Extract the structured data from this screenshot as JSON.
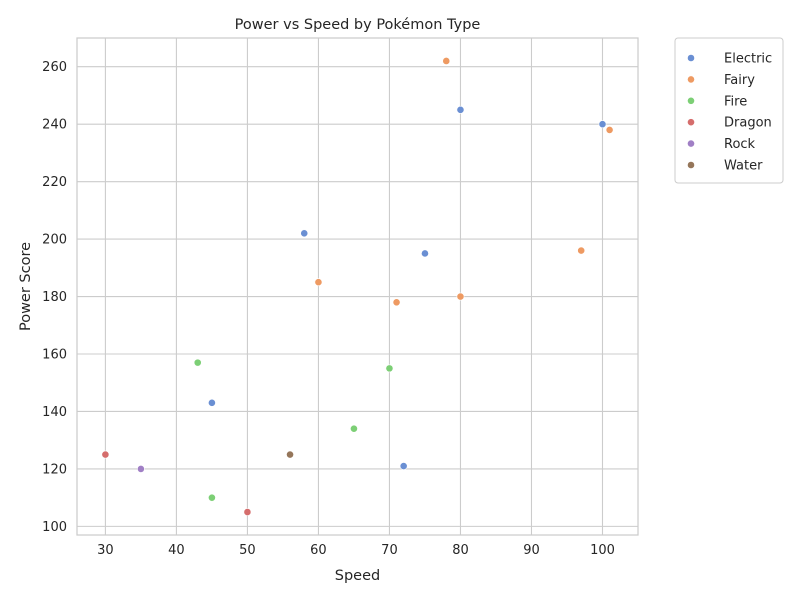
{
  "chart_data": {
    "type": "scatter",
    "title": "Power vs Speed by Pokémon Type",
    "xlabel": "Speed",
    "ylabel": "Power Score",
    "xlim": [
      26,
      105
    ],
    "ylim": [
      97,
      270
    ],
    "xticks": [
      30,
      40,
      50,
      60,
      70,
      80,
      90,
      100
    ],
    "yticks": [
      100,
      120,
      140,
      160,
      180,
      200,
      220,
      240,
      260
    ],
    "grid": true,
    "legend_position": "outside-top-right",
    "series": [
      {
        "name": "Electric",
        "color": "#6a8fd3",
        "points": [
          {
            "x": 80,
            "y": 245
          },
          {
            "x": 100,
            "y": 240
          },
          {
            "x": 58,
            "y": 202
          },
          {
            "x": 75,
            "y": 195
          },
          {
            "x": 45,
            "y": 143
          },
          {
            "x": 72,
            "y": 121
          }
        ]
      },
      {
        "name": "Fairy",
        "color": "#ee9a62",
        "points": [
          {
            "x": 78,
            "y": 262
          },
          {
            "x": 101,
            "y": 238
          },
          {
            "x": 97,
            "y": 196
          },
          {
            "x": 60,
            "y": 185
          },
          {
            "x": 80,
            "y": 180
          },
          {
            "x": 71,
            "y": 178
          }
        ]
      },
      {
        "name": "Fire",
        "color": "#7ccf75",
        "points": [
          {
            "x": 43,
            "y": 157
          },
          {
            "x": 70,
            "y": 155
          },
          {
            "x": 65,
            "y": 134
          },
          {
            "x": 45,
            "y": 110
          }
        ]
      },
      {
        "name": "Dragon",
        "color": "#d56d6c",
        "points": [
          {
            "x": 30,
            "y": 125
          },
          {
            "x": 50,
            "y": 105
          }
        ]
      },
      {
        "name": "Rock",
        "color": "#a07fc5",
        "points": [
          {
            "x": 35,
            "y": 120
          }
        ]
      },
      {
        "name": "Water",
        "color": "#95765a",
        "points": [
          {
            "x": 56,
            "y": 125
          }
        ]
      }
    ]
  }
}
